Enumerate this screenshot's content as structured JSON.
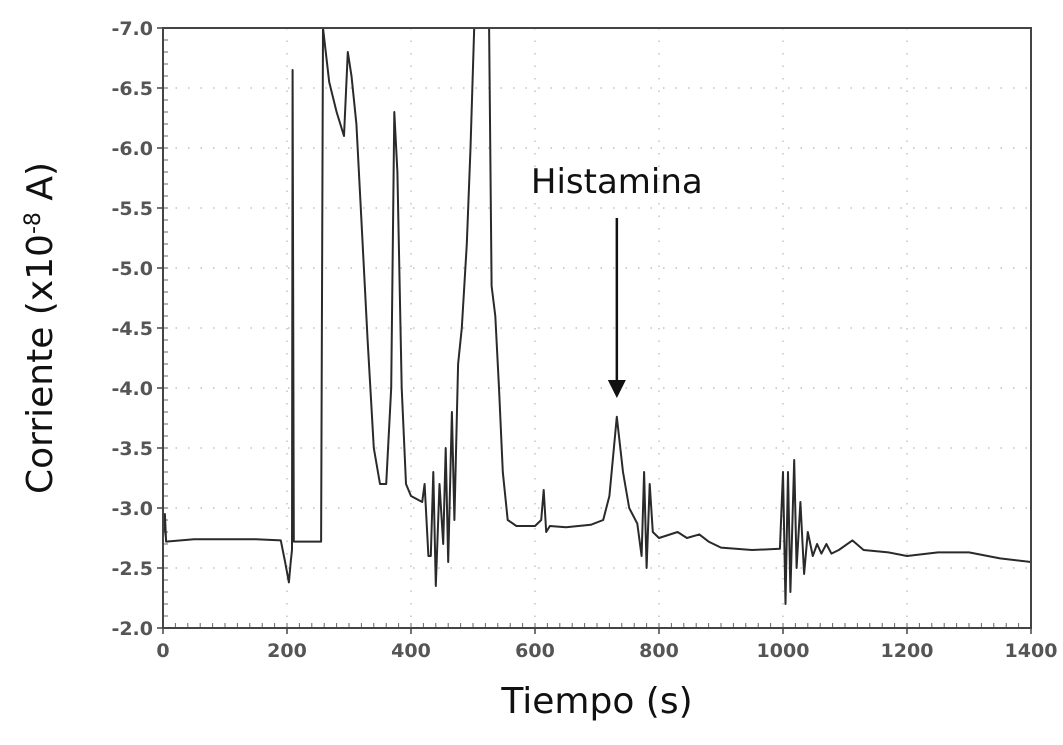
{
  "chart_data": {
    "type": "line",
    "xlabel": "Tiempo (s)",
    "ylabel": {
      "prefix": "Corriente (x10",
      "superscript": "-8",
      "suffix": " A)"
    },
    "xlim": [
      0,
      1400
    ],
    "ylim": [
      -7.0,
      -2.0
    ],
    "x_ticks": [
      0,
      200,
      400,
      600,
      800,
      1000,
      1200,
      1400
    ],
    "x_tick_labels": [
      "0",
      "200",
      "400",
      "600",
      "800",
      "1000",
      "1200",
      "1400"
    ],
    "y_ticks": [
      -7.0,
      -6.5,
      -6.0,
      -5.5,
      -5.0,
      -4.5,
      -4.0,
      -3.5,
      -3.0,
      -2.5,
      -2.0
    ],
    "y_tick_labels": [
      "-7.0",
      "-6.5",
      "-6.0",
      "-5.5",
      "-5.0",
      "-4.5",
      "-4.0",
      "-3.5",
      "-3.0",
      "-2.5",
      "-2.0"
    ],
    "grid": true,
    "annotation": {
      "text": "Histamina",
      "x": 732,
      "y": -3.85
    },
    "series": [
      {
        "color": "#2a2a2a",
        "points": [
          [
            0,
            -2.75
          ],
          [
            3,
            -2.95
          ],
          [
            5,
            -2.72
          ],
          [
            50,
            -2.74
          ],
          [
            100,
            -2.74
          ],
          [
            150,
            -2.74
          ],
          [
            190,
            -2.73
          ],
          [
            197,
            -2.55
          ],
          [
            203,
            -2.38
          ],
          [
            206,
            -2.55
          ],
          [
            208,
            -2.65
          ],
          [
            209,
            -6.65
          ],
          [
            211,
            -2.72
          ],
          [
            240,
            -2.72
          ],
          [
            255,
            -2.72
          ],
          [
            258,
            -7.0
          ],
          [
            268,
            -6.55
          ],
          [
            280,
            -6.3
          ],
          [
            292,
            -6.1
          ],
          [
            298,
            -6.8
          ],
          [
            304,
            -6.6
          ],
          [
            312,
            -6.2
          ],
          [
            320,
            -5.4
          ],
          [
            330,
            -4.4
          ],
          [
            340,
            -3.5
          ],
          [
            350,
            -3.2
          ],
          [
            360,
            -3.2
          ],
          [
            368,
            -4.0
          ],
          [
            373,
            -6.3
          ],
          [
            378,
            -5.8
          ],
          [
            385,
            -4.0
          ],
          [
            392,
            -3.2
          ],
          [
            400,
            -3.1
          ],
          [
            418,
            -3.05
          ],
          [
            422,
            -3.2
          ],
          [
            428,
            -2.6
          ],
          [
            432,
            -2.6
          ],
          [
            436,
            -3.3
          ],
          [
            440,
            -2.35
          ],
          [
            446,
            -3.2
          ],
          [
            452,
            -2.7
          ],
          [
            456,
            -3.5
          ],
          [
            460,
            -2.55
          ],
          [
            466,
            -3.8
          ],
          [
            470,
            -2.9
          ],
          [
            476,
            -4.2
          ],
          [
            482,
            -4.5
          ],
          [
            490,
            -5.2
          ],
          [
            496,
            -6.0
          ],
          [
            502,
            -7.0
          ],
          [
            510,
            -7.0
          ],
          [
            518,
            -7.0
          ],
          [
            526,
            -7.0
          ],
          [
            530,
            -4.85
          ],
          [
            536,
            -4.6
          ],
          [
            542,
            -4.0
          ],
          [
            548,
            -3.3
          ],
          [
            556,
            -2.9
          ],
          [
            570,
            -2.85
          ],
          [
            600,
            -2.85
          ],
          [
            610,
            -2.9
          ],
          [
            614,
            -3.15
          ],
          [
            618,
            -2.8
          ],
          [
            624,
            -2.85
          ],
          [
            650,
            -2.84
          ],
          [
            690,
            -2.86
          ],
          [
            710,
            -2.9
          ],
          [
            720,
            -3.1
          ],
          [
            732,
            -3.76
          ],
          [
            742,
            -3.3
          ],
          [
            752,
            -3.0
          ],
          [
            765,
            -2.87
          ],
          [
            772,
            -2.6
          ],
          [
            776,
            -3.3
          ],
          [
            780,
            -2.5
          ],
          [
            785,
            -3.2
          ],
          [
            790,
            -2.8
          ],
          [
            800,
            -2.75
          ],
          [
            830,
            -2.8
          ],
          [
            845,
            -2.75
          ],
          [
            865,
            -2.78
          ],
          [
            880,
            -2.72
          ],
          [
            900,
            -2.67
          ],
          [
            950,
            -2.65
          ],
          [
            995,
            -2.66
          ],
          [
            1000,
            -3.3
          ],
          [
            1004,
            -2.2
          ],
          [
            1008,
            -3.3
          ],
          [
            1012,
            -2.3
          ],
          [
            1018,
            -3.4
          ],
          [
            1022,
            -2.5
          ],
          [
            1028,
            -3.05
          ],
          [
            1034,
            -2.45
          ],
          [
            1040,
            -2.8
          ],
          [
            1048,
            -2.6
          ],
          [
            1055,
            -2.7
          ],
          [
            1062,
            -2.62
          ],
          [
            1070,
            -2.7
          ],
          [
            1078,
            -2.62
          ],
          [
            1090,
            -2.65
          ],
          [
            1112,
            -2.73
          ],
          [
            1130,
            -2.65
          ],
          [
            1170,
            -2.63
          ],
          [
            1200,
            -2.6
          ],
          [
            1250,
            -2.63
          ],
          [
            1300,
            -2.63
          ],
          [
            1350,
            -2.58
          ],
          [
            1400,
            -2.55
          ]
        ]
      }
    ]
  }
}
